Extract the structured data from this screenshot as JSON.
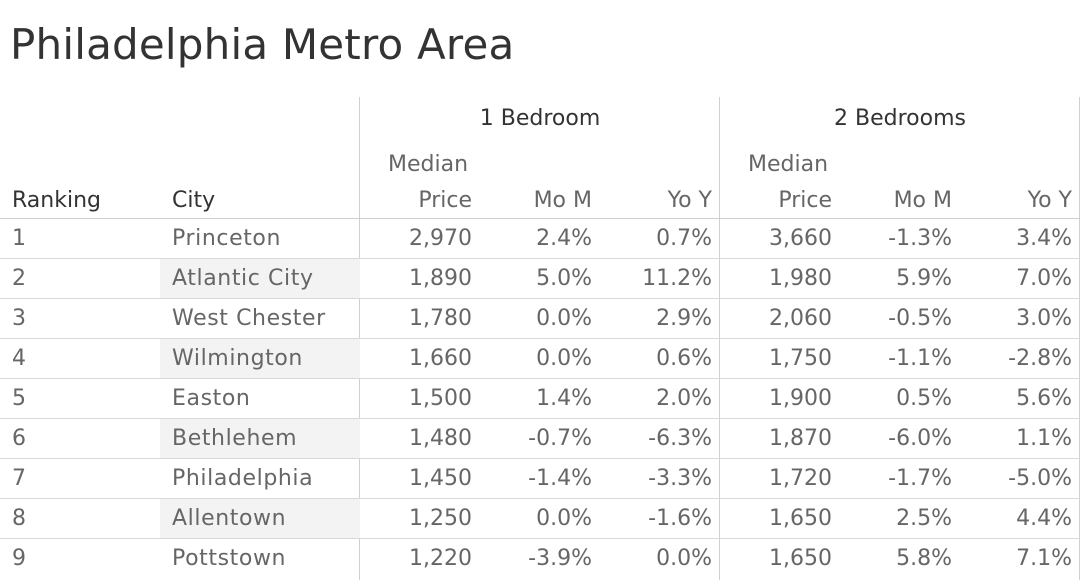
{
  "title": "Philadelphia Metro Area",
  "group_headers": [
    "1 Bedroom",
    "2 Bedrooms"
  ],
  "column_headers": {
    "ranking": "Ranking",
    "city": "City",
    "median_line1": "Median",
    "median_line2": "Price",
    "mom": "Mo M",
    "yoy": "Yo Y"
  },
  "chart_data": {
    "type": "table",
    "title": "Philadelphia Metro Area",
    "columns": [
      "Ranking",
      "City",
      "1 Bedroom Median Price",
      "1 Bedroom Mo M",
      "1 Bedroom Yo Y",
      "2 Bedrooms Median Price",
      "2 Bedrooms Mo M",
      "2 Bedrooms Yo Y"
    ],
    "rows": [
      {
        "rank": "1",
        "city": "Princeton",
        "b1_price": "2,970",
        "b1_mom": "2.4%",
        "b1_yoy": "0.7%",
        "b2_price": "3,660",
        "b2_mom": "-1.3%",
        "b2_yoy": "3.4%"
      },
      {
        "rank": "2",
        "city": "Atlantic City",
        "b1_price": "1,890",
        "b1_mom": "5.0%",
        "b1_yoy": "11.2%",
        "b2_price": "1,980",
        "b2_mom": "5.9%",
        "b2_yoy": "7.0%"
      },
      {
        "rank": "3",
        "city": "West Chester",
        "b1_price": "1,780",
        "b1_mom": "0.0%",
        "b1_yoy": "2.9%",
        "b2_price": "2,060",
        "b2_mom": "-0.5%",
        "b2_yoy": "3.0%"
      },
      {
        "rank": "4",
        "city": "Wilmington",
        "b1_price": "1,660",
        "b1_mom": "0.0%",
        "b1_yoy": "0.6%",
        "b2_price": "1,750",
        "b2_mom": "-1.1%",
        "b2_yoy": "-2.8%"
      },
      {
        "rank": "5",
        "city": "Easton",
        "b1_price": "1,500",
        "b1_mom": "1.4%",
        "b1_yoy": "2.0%",
        "b2_price": "1,900",
        "b2_mom": "0.5%",
        "b2_yoy": "5.6%"
      },
      {
        "rank": "6",
        "city": "Bethlehem",
        "b1_price": "1,480",
        "b1_mom": "-0.7%",
        "b1_yoy": "-6.3%",
        "b2_price": "1,870",
        "b2_mom": "-6.0%",
        "b2_yoy": "1.1%"
      },
      {
        "rank": "7",
        "city": "Philadelphia",
        "b1_price": "1,450",
        "b1_mom": "-1.4%",
        "b1_yoy": "-3.3%",
        "b2_price": "1,720",
        "b2_mom": "-1.7%",
        "b2_yoy": "-5.0%"
      },
      {
        "rank": "8",
        "city": "Allentown",
        "b1_price": "1,250",
        "b1_mom": "0.0%",
        "b1_yoy": "-1.6%",
        "b2_price": "1,650",
        "b2_mom": "2.5%",
        "b2_yoy": "4.4%"
      },
      {
        "rank": "9",
        "city": "Pottstown",
        "b1_price": "1,220",
        "b1_mom": "-3.9%",
        "b1_yoy": "0.0%",
        "b2_price": "1,650",
        "b2_mom": "5.8%",
        "b2_yoy": "7.1%"
      }
    ]
  }
}
